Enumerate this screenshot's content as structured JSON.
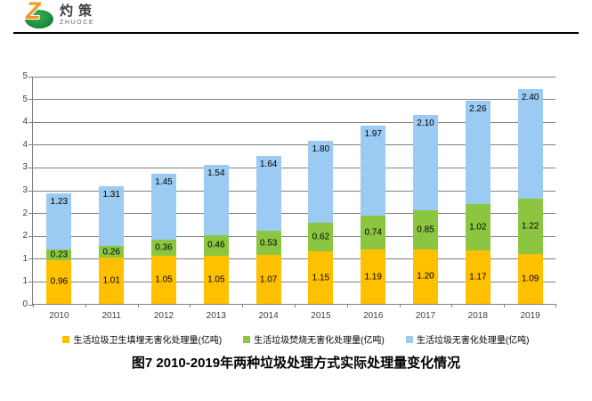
{
  "logo": {
    "mark_letter": "Z",
    "brand_cn": "灼策",
    "brand_en": "ZHUOCE",
    "mark_orange": "#f7941e",
    "mark_green": "#1d9140"
  },
  "chart_data": {
    "type": "bar",
    "stacked": true,
    "categories": [
      "2010",
      "2011",
      "2012",
      "2013",
      "2014",
      "2015",
      "2016",
      "2017",
      "2018",
      "2019"
    ],
    "series": [
      {
        "name": "生活垃圾卫生填埋无害化处理量(亿吨)",
        "color": "#FFC000",
        "values": [
          0.96,
          1.01,
          1.05,
          1.05,
          1.07,
          1.15,
          1.19,
          1.2,
          1.17,
          1.09
        ],
        "label_position": "center"
      },
      {
        "name": "生活垃圾焚烧无害化处理量(亿吨)",
        "color": "#8CC640",
        "values": [
          0.23,
          0.26,
          0.36,
          0.46,
          0.53,
          0.62,
          0.74,
          0.85,
          1.02,
          1.22
        ],
        "label_position": "center"
      },
      {
        "name": "生活垃圾无害化处理量(亿吨)",
        "color": "#9BCAF2",
        "values": [
          1.23,
          1.31,
          1.45,
          1.54,
          1.64,
          1.8,
          1.97,
          2.1,
          2.26,
          2.4
        ],
        "label_position": "inside-top"
      }
    ],
    "ylim": [
      0,
      5
    ],
    "y_tick_step": 0.5,
    "y_tick_labels": [
      "0",
      "1",
      "1",
      "2",
      "2",
      "3",
      "3",
      "4",
      "4",
      "5",
      "5"
    ],
    "grid": true,
    "gridline_color": "#808080",
    "legend_position": "bottom",
    "title": "图7  2010-2019年两种垃圾处理方式实际处理量变化情况"
  },
  "title": {
    "text": "图7  2010-2019年两种垃圾处理方式实际处理量变化情况"
  }
}
